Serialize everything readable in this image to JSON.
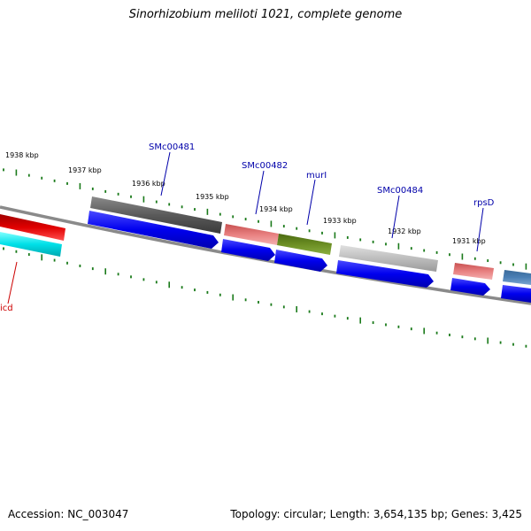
{
  "title": "Sinorhizobium meliloti 1021, complete genome",
  "footer": {
    "accession": "Accession: NC_003047",
    "topology": "Topology: circular; Length: 3,654,135 bp; Genes: 3,425"
  },
  "ruler": {
    "labels": [
      "1938 kbp",
      "1937 kbp",
      "1936 kbp",
      "1935 kbp",
      "1934 kbp",
      "1933 kbp",
      "1932 kbp",
      "1931 kbp"
    ],
    "tick_color": "#1a7a1a"
  },
  "gene_labels": [
    "SMc00481",
    "SMc00482",
    "murI",
    "SMc00484",
    "rpsD",
    "icd"
  ],
  "colors": {
    "gene_label_blue": "#0000aa",
    "gene_label_red": "#cc0000",
    "backbone": "#8a8a8a",
    "cds_arrow": "#0000ee",
    "feature_dark_gray": "#5a5a5a",
    "feature_light_gray": "#bdbdbd",
    "feature_pink": "#e88080",
    "feature_olive": "#6b8e23",
    "feature_red": "#e00000",
    "feature_cyan": "#00e0e8",
    "feature_steel_blue": "#4a7fb5"
  }
}
